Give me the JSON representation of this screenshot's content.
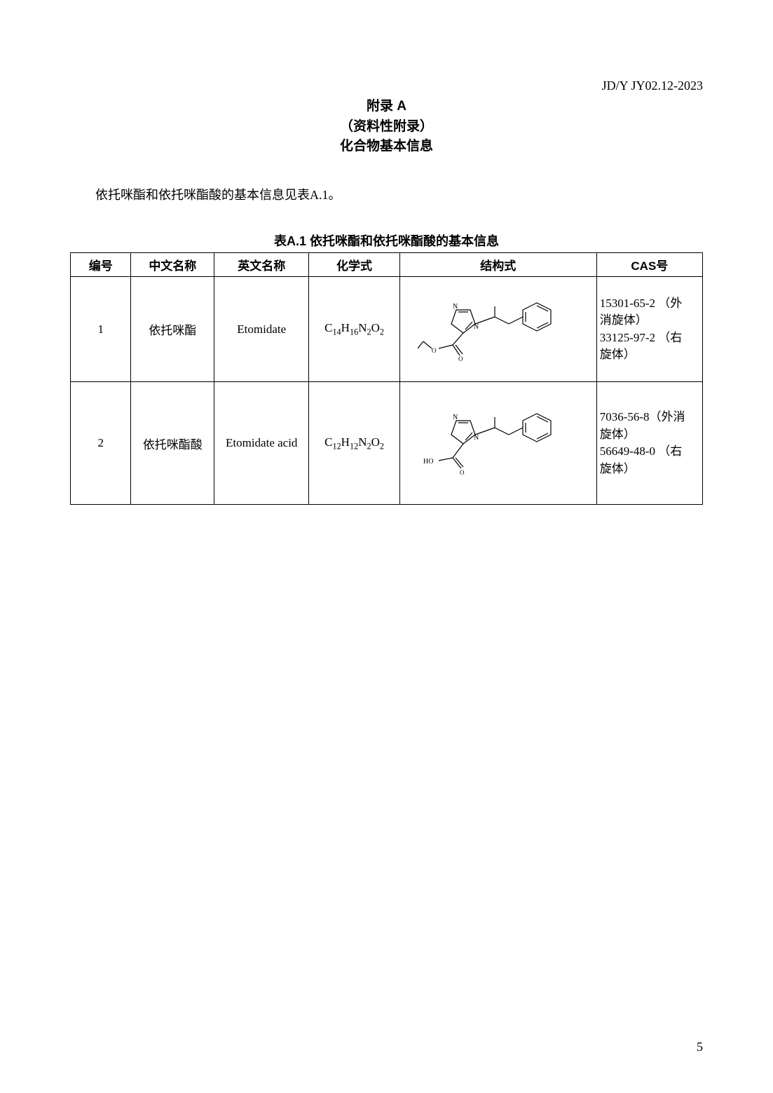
{
  "header_code": "JD/Y   JY02.12-2023",
  "title": {
    "line1": "附录 A",
    "line2": "（资料性附录）",
    "line3": "化合物基本信息"
  },
  "intro": "依托咪酯和依托咪酯酸的基本信息见表A.1。",
  "table": {
    "caption": "表A.1  依托咪酯和依托咪酯酸的基本信息",
    "columns": {
      "id": "编号",
      "cn": "中文名称",
      "en": "英文名称",
      "formula": "化学式",
      "structure": "结构式",
      "cas": "CAS号"
    },
    "rows": [
      {
        "id": "1",
        "cn": "依托咪酯",
        "en": "Etomidate",
        "formula_parts": [
          "C",
          "14",
          "H",
          "16",
          "N",
          "2",
          "O",
          "2"
        ],
        "cas_lines": [
          "15301-65-2 （外",
          "消旋体）",
          "33125-97-2 （右",
          "旋体）"
        ],
        "structure": "etomidate",
        "struct_stroke": "#000000",
        "struct_fill": "none"
      },
      {
        "id": "2",
        "cn": "依托咪酯酸",
        "en": "Etomidate acid",
        "formula_parts": [
          "C",
          "12",
          "H",
          "12",
          "N",
          "2",
          "O",
          "2"
        ],
        "cas_lines": [
          "7036-56-8（外消",
          "旋体）",
          "56649-48-0 （右",
          "旋体）"
        ],
        "structure": "etomidate_acid",
        "struct_stroke": "#000000",
        "struct_fill": "none"
      }
    ]
  },
  "page_number": "5",
  "colors": {
    "text": "#000000",
    "background": "#ffffff",
    "border": "#000000"
  }
}
